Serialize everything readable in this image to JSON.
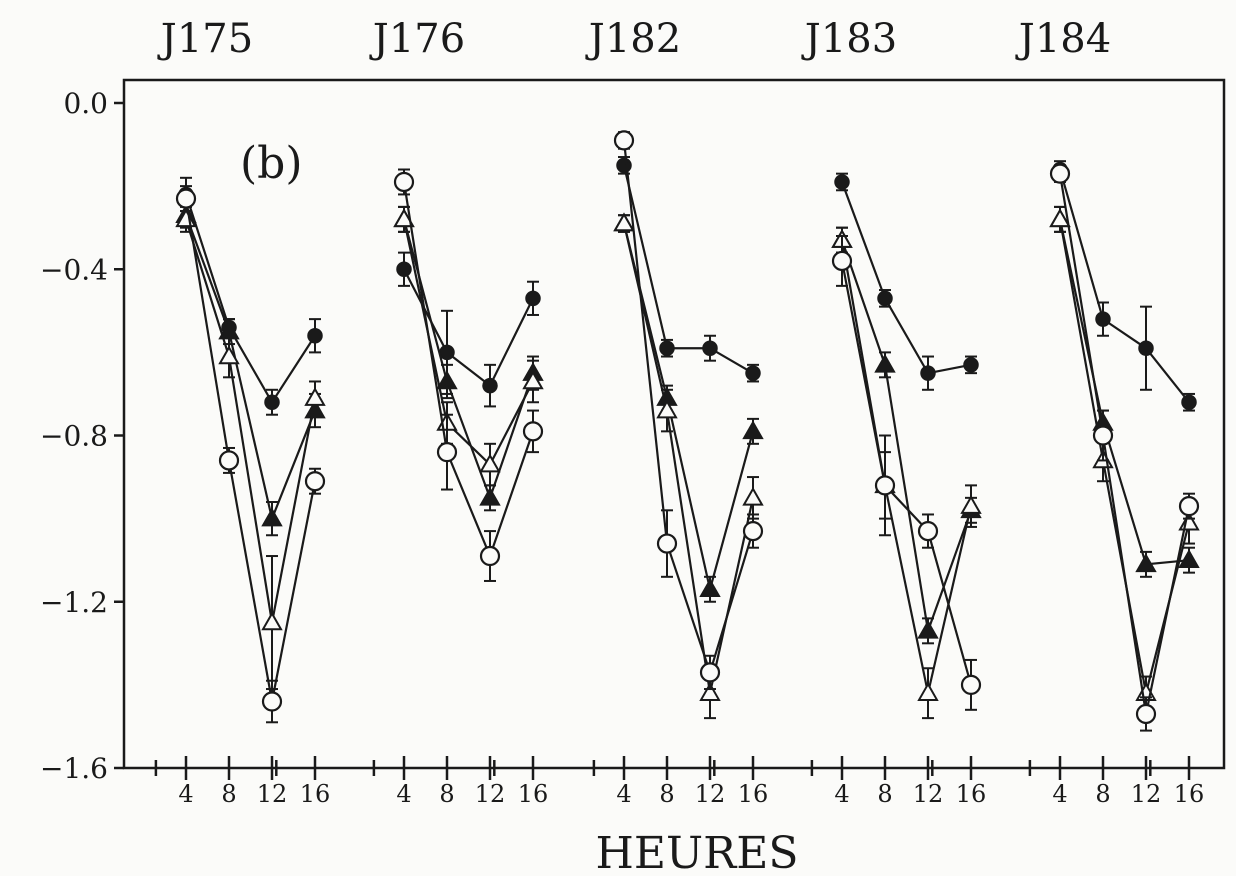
{
  "chart_data": {
    "type": "line",
    "panel_label": "(b)",
    "xlabel": "HEURES",
    "ylabel": "",
    "ylim": [
      -1.6,
      0.0
    ],
    "y_ticks": [
      {
        "value": 0.0,
        "label": "0.0"
      },
      {
        "value": -0.4,
        "label": "−0.4"
      },
      {
        "value": -0.8,
        "label": "−0.8"
      },
      {
        "value": -1.2,
        "label": "−1.2"
      },
      {
        "value": -1.6,
        "label": "−1.6"
      }
    ],
    "hours": [
      4,
      8,
      12,
      16
    ],
    "hour_labels": [
      "4",
      "8",
      "12",
      "16"
    ],
    "days": [
      "J175",
      "J176",
      "J182",
      "J183",
      "J184"
    ],
    "grid": false,
    "legend": "none",
    "series": [
      {
        "marker": "filled-circle",
        "values": [
          [
            -0.22,
            -0.54,
            -0.72,
            -0.56
          ],
          [
            -0.4,
            -0.6,
            -0.68,
            -0.47
          ],
          [
            -0.15,
            -0.59,
            -0.59,
            -0.65
          ],
          [
            -0.19,
            -0.47,
            -0.65,
            -0.63
          ],
          [
            -0.16,
            -0.52,
            -0.59,
            -0.72
          ]
        ],
        "err": [
          [
            0.04,
            0.02,
            0.03,
            0.04
          ],
          [
            0.04,
            0.1,
            0.05,
            0.04
          ],
          [
            0.02,
            0.02,
            0.03,
            0.02
          ],
          [
            0.02,
            0.02,
            0.04,
            0.02
          ],
          [
            0.02,
            0.04,
            0.1,
            0.02
          ]
        ]
      },
      {
        "marker": "filled-triangle",
        "values": [
          [
            -0.27,
            -0.55,
            -1.0,
            -0.74
          ],
          [
            -0.28,
            -0.67,
            -0.95,
            -0.65
          ],
          [
            -0.29,
            -0.71,
            -1.17,
            -0.79
          ],
          [
            -0.33,
            -0.63,
            -1.27,
            -0.98
          ],
          [
            -0.28,
            -0.77,
            -1.11,
            -1.1
          ]
        ],
        "err": [
          [
            0.03,
            0.03,
            0.04,
            0.04
          ],
          [
            0.03,
            0.04,
            0.03,
            0.04
          ],
          [
            0.02,
            0.03,
            0.03,
            0.03
          ],
          [
            0.03,
            0.03,
            0.03,
            0.03
          ],
          [
            0.03,
            0.03,
            0.03,
            0.03
          ]
        ]
      },
      {
        "marker": "open-triangle",
        "values": [
          [
            -0.28,
            -0.61,
            -1.25,
            -0.71
          ],
          [
            -0.28,
            -0.77,
            -0.87,
            -0.67
          ],
          [
            -0.29,
            -0.74,
            -1.42,
            -0.95
          ],
          [
            -0.33,
            -0.92,
            -1.42,
            -0.97
          ],
          [
            -0.28,
            -0.86,
            -1.42,
            -1.01
          ]
        ],
        "err": [
          [
            0.03,
            0.05,
            0.16,
            0.04
          ],
          [
            0.03,
            0.05,
            0.05,
            0.05
          ],
          [
            0.02,
            0.05,
            0.06,
            0.05
          ],
          [
            0.03,
            0.12,
            0.06,
            0.05
          ],
          [
            0.03,
            0.05,
            0.04,
            0.05
          ]
        ]
      },
      {
        "marker": "open-circle",
        "values": [
          [
            -0.23,
            -0.86,
            -1.44,
            -0.91
          ],
          [
            -0.19,
            -0.84,
            -1.09,
            -0.79
          ],
          [
            -0.09,
            -1.06,
            -1.37,
            -1.03
          ],
          [
            -0.38,
            -0.92,
            -1.03,
            -1.4
          ],
          [
            -0.17,
            -0.8,
            -1.47,
            -0.97
          ]
        ],
        "err": [
          [
            0.03,
            0.03,
            0.05,
            0.03
          ],
          [
            0.03,
            0.09,
            0.06,
            0.05
          ],
          [
            0.02,
            0.08,
            0.04,
            0.04
          ],
          [
            0.06,
            0.08,
            0.04,
            0.06
          ],
          [
            0.02,
            0.06,
            0.04,
            0.03
          ]
        ]
      }
    ]
  }
}
